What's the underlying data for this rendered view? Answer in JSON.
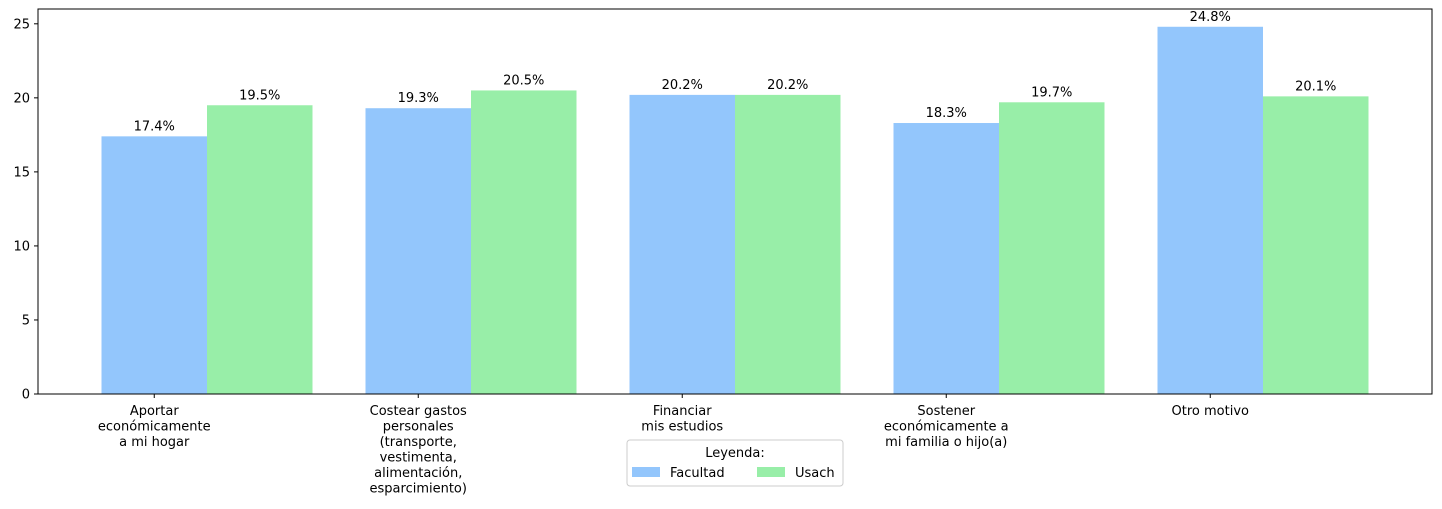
{
  "chart_data": {
    "type": "bar",
    "categories": [
      "Aportar\neconómicamente\na mi hogar",
      "Costear gastos\npersonales\n(transporte,\nvestimenta,\nalimentación,\nesparcimiento)",
      "Financiar\nmis estudios",
      "Sostener\neconómicamente a\nmi familia o hijo(a)",
      "Otro motivo"
    ],
    "series": [
      {
        "name": "Facultad",
        "values": [
          17.4,
          19.3,
          20.2,
          18.3,
          24.8
        ],
        "color": "#93c6fc"
      },
      {
        "name": "Usach",
        "values": [
          19.5,
          20.5,
          20.2,
          19.7,
          20.1
        ],
        "color": "#98eea8"
      }
    ],
    "data_labels": [
      [
        "17.4%",
        "19.3%",
        "20.2%",
        "18.3%",
        "24.8%"
      ],
      [
        "19.5%",
        "20.5%",
        "20.2%",
        "19.7%",
        "20.1%"
      ]
    ],
    "yticks": [
      0,
      5,
      10,
      15,
      20,
      25
    ],
    "ylim": [
      0,
      26
    ],
    "grid": false,
    "legend": {
      "title": "Leyenda:",
      "placement": "bottom-center",
      "columns": 2
    }
  }
}
